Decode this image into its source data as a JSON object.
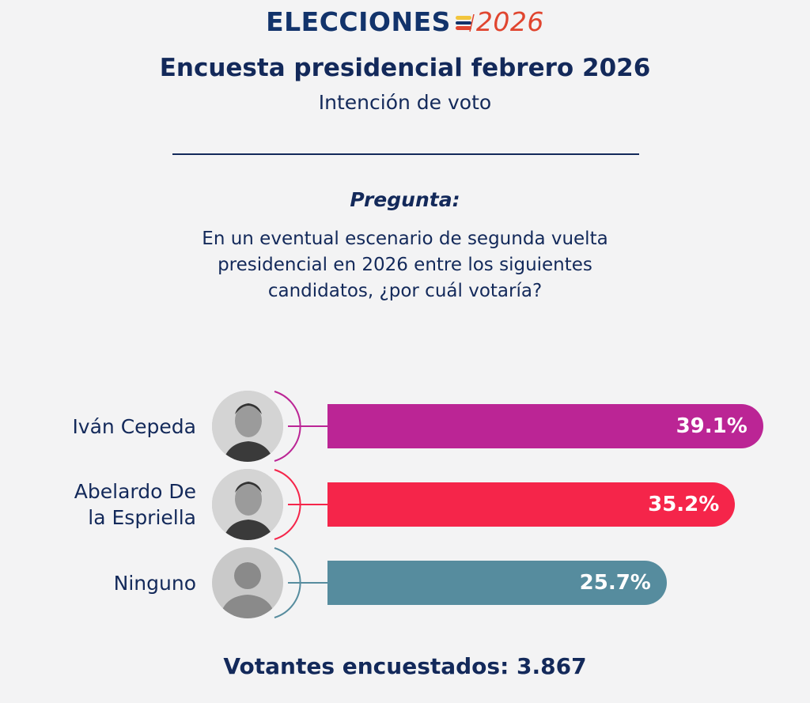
{
  "logo": {
    "word": "ELECCIONES",
    "year": "2026"
  },
  "header": {
    "title": "Encuesta presidencial febrero 2026",
    "subtitle": "Intención de voto"
  },
  "question": {
    "label": "Pregunta:",
    "text": "En un eventual escenario de segunda vuelta presidencial en 2026 entre los siguientes candidatos, ¿por cuál votaría?"
  },
  "chart_data": {
    "type": "bar",
    "orientation": "horizontal",
    "title": "Encuesta presidencial febrero 2026 - Intención de voto",
    "categories": [
      "Iván Cepeda",
      "Abelardo De la Espriella",
      "Ninguno"
    ],
    "values": [
      39.1,
      35.2,
      25.7
    ],
    "labels": [
      "39.1%",
      "35.2%",
      "25.7%"
    ],
    "colors": [
      "#bb2595",
      "#f5254a",
      "#568c9e"
    ],
    "unit": "%"
  },
  "candidates": [
    {
      "name_lines": [
        "Iván Cepeda"
      ]
    },
    {
      "name_lines": [
        "Abelardo De",
        "la Espriella"
      ]
    },
    {
      "name_lines": [
        "Ninguno"
      ]
    }
  ],
  "footer": {
    "text": "Votantes encuestados: 3.867"
  }
}
